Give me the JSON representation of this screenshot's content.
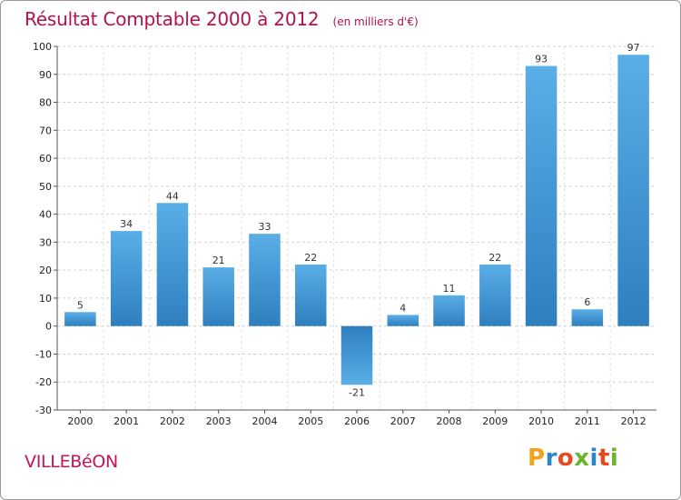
{
  "chart_data": {
    "type": "bar",
    "title": "Résultat Comptable 2000 à 2012",
    "subtitle": "(en milliers d'€)",
    "categories": [
      "2000",
      "2001",
      "2002",
      "2003",
      "2004",
      "2005",
      "2006",
      "2007",
      "2008",
      "2009",
      "2010",
      "2011",
      "2012"
    ],
    "values": [
      5,
      34,
      44,
      21,
      33,
      22,
      -21,
      4,
      11,
      22,
      93,
      6,
      97
    ],
    "ylim": [
      -30,
      100
    ],
    "yticks": [
      -30,
      -20,
      -10,
      0,
      10,
      20,
      30,
      40,
      50,
      60,
      70,
      80,
      90,
      100
    ],
    "grid": true,
    "xlabel": "",
    "ylabel": "",
    "colors": {
      "bar_top": "#5aaee6",
      "bar_bottom": "#2f7fbf",
      "title": "#b5124b"
    }
  },
  "footer": {
    "commune": "VILLEBéON",
    "brand_letters": [
      "P",
      "r",
      "o",
      "x",
      "i",
      "t",
      "i"
    ],
    "brand_colors": [
      "#f3a21b",
      "#2b86c8",
      "#e84a1f",
      "#6bb42b",
      "#2b86c8",
      "#e84a1f",
      "#6bb42b"
    ]
  }
}
